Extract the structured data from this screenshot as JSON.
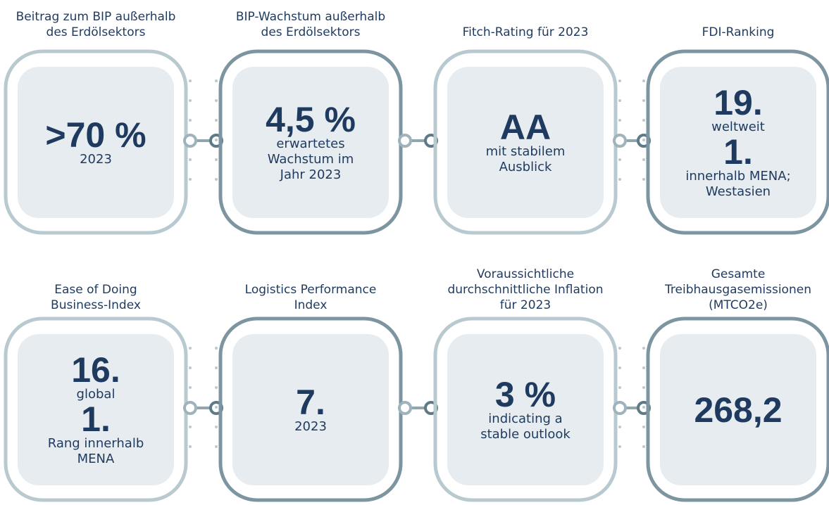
{
  "cards": [
    {
      "caption": [
        "Beitrag zum BIP außerhalb",
        "des Erdölsektors"
      ],
      "items": [
        {
          "value": ">70 %",
          "note": [
            "2023"
          ]
        }
      ]
    },
    {
      "caption": [
        "BIP-Wachstum außerhalb",
        "des Erdölsektors"
      ],
      "items": [
        {
          "value": "4,5 %",
          "note": [
            "erwartetes",
            "Wachstum im",
            "Jahr 2023"
          ]
        }
      ]
    },
    {
      "caption": [
        "Fitch-Rating für 2023"
      ],
      "items": [
        {
          "value": "AA",
          "note": [
            "mit stabilem",
            "Ausblick"
          ]
        }
      ]
    },
    {
      "caption": [
        "FDI-Ranking"
      ],
      "items": [
        {
          "value": "19.",
          "note": [
            "weltweit"
          ]
        },
        {
          "value": "1.",
          "note": [
            "innerhalb MENA;",
            "Westasien"
          ]
        }
      ]
    },
    {
      "caption": [
        "Ease of Doing",
        "Business-Index"
      ],
      "items": [
        {
          "value": "16.",
          "note": [
            "global"
          ]
        },
        {
          "value": "1.",
          "note": [
            "Rang innerhalb",
            "MENA"
          ]
        }
      ]
    },
    {
      "caption": [
        "Logistics Performance",
        "Index"
      ],
      "items": [
        {
          "value": "7.",
          "note": [
            "2023"
          ]
        }
      ]
    },
    {
      "caption": [
        "Voraussichtliche",
        "durchschnittliche Inflation",
        "für 2023"
      ],
      "items": [
        {
          "value": "3 %",
          "note": [
            "indicating a",
            "stable outlook"
          ]
        }
      ]
    },
    {
      "caption": [
        "Gesamte",
        "Treibhausgasemissionen",
        "(MTCO2e)"
      ],
      "items": [
        {
          "value": "268,2",
          "note": []
        }
      ]
    }
  ]
}
